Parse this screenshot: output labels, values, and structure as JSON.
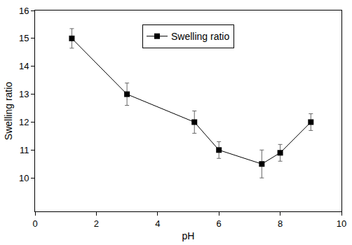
{
  "chart_data": {
    "type": "line",
    "x_label": "pH",
    "y_label": "Swelling ratio",
    "x": [
      1.2,
      3,
      5.2,
      6,
      7.4,
      8,
      9
    ],
    "series": [
      {
        "name": "Swelling ratio",
        "color": "#000000",
        "marker": "square",
        "line_style": "solid",
        "values": [
          15,
          13,
          12,
          11,
          10.5,
          10.9,
          12
        ],
        "errors": [
          0.35,
          0.4,
          0.4,
          0.3,
          0.5,
          0.3,
          0.3
        ]
      }
    ],
    "xlim": [
      0,
      10
    ],
    "xticks": [
      0,
      2,
      4,
      6,
      8,
      10
    ],
    "ylim": [
      8.8,
      16
    ],
    "yticks": [
      10,
      11,
      12,
      13,
      14,
      15,
      16
    ],
    "grid": false,
    "legend": "top"
  }
}
